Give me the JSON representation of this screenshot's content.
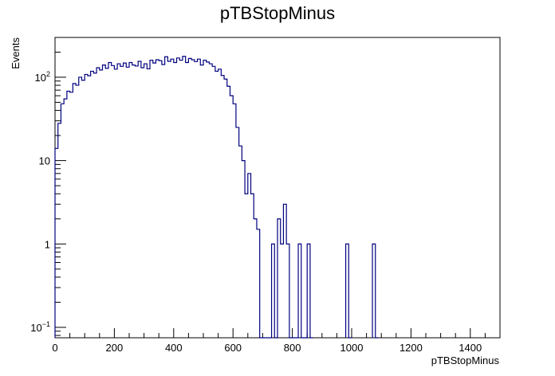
{
  "chart_data": {
    "type": "histogram",
    "title": "pTBStopMinus",
    "xlabel": "pTBStopMinus",
    "ylabel": "Events",
    "xlim": [
      0,
      1500
    ],
    "ylim": [
      0.075,
      300
    ],
    "y_scale": "log",
    "bin_width": 10,
    "line_color": "#000080",
    "x_ticks": [
      0,
      200,
      400,
      600,
      800,
      1000,
      1200,
      1400
    ],
    "y_ticks": [
      {
        "value": 0.1,
        "base": "10",
        "exp": "−1"
      },
      {
        "value": 1,
        "base": "1",
        "exp": ""
      },
      {
        "value": 10,
        "base": "10",
        "exp": ""
      },
      {
        "value": 100,
        "base": "10",
        "exp": "2"
      }
    ],
    "bins": [
      {
        "x": 0,
        "y": 14
      },
      {
        "x": 10,
        "y": 28
      },
      {
        "x": 20,
        "y": 48
      },
      {
        "x": 30,
        "y": 55
      },
      {
        "x": 40,
        "y": 68
      },
      {
        "x": 50,
        "y": 66
      },
      {
        "x": 60,
        "y": 84
      },
      {
        "x": 70,
        "y": 80
      },
      {
        "x": 80,
        "y": 100
      },
      {
        "x": 90,
        "y": 92
      },
      {
        "x": 100,
        "y": 108
      },
      {
        "x": 110,
        "y": 104
      },
      {
        "x": 120,
        "y": 118
      },
      {
        "x": 130,
        "y": 112
      },
      {
        "x": 140,
        "y": 130
      },
      {
        "x": 150,
        "y": 122
      },
      {
        "x": 160,
        "y": 140
      },
      {
        "x": 170,
        "y": 128
      },
      {
        "x": 180,
        "y": 150
      },
      {
        "x": 190,
        "y": 138
      },
      {
        "x": 200,
        "y": 125
      },
      {
        "x": 210,
        "y": 145
      },
      {
        "x": 220,
        "y": 135
      },
      {
        "x": 230,
        "y": 148
      },
      {
        "x": 240,
        "y": 132
      },
      {
        "x": 250,
        "y": 150
      },
      {
        "x": 260,
        "y": 140
      },
      {
        "x": 270,
        "y": 136
      },
      {
        "x": 280,
        "y": 155
      },
      {
        "x": 290,
        "y": 130
      },
      {
        "x": 300,
        "y": 145
      },
      {
        "x": 310,
        "y": 126
      },
      {
        "x": 320,
        "y": 160
      },
      {
        "x": 330,
        "y": 148
      },
      {
        "x": 340,
        "y": 162
      },
      {
        "x": 350,
        "y": 158
      },
      {
        "x": 360,
        "y": 142
      },
      {
        "x": 370,
        "y": 176
      },
      {
        "x": 380,
        "y": 155
      },
      {
        "x": 390,
        "y": 165
      },
      {
        "x": 400,
        "y": 150
      },
      {
        "x": 410,
        "y": 170
      },
      {
        "x": 420,
        "y": 160
      },
      {
        "x": 430,
        "y": 178
      },
      {
        "x": 440,
        "y": 150
      },
      {
        "x": 450,
        "y": 168
      },
      {
        "x": 460,
        "y": 162
      },
      {
        "x": 470,
        "y": 154
      },
      {
        "x": 480,
        "y": 165
      },
      {
        "x": 490,
        "y": 140
      },
      {
        "x": 500,
        "y": 160
      },
      {
        "x": 510,
        "y": 152
      },
      {
        "x": 520,
        "y": 145
      },
      {
        "x": 530,
        "y": 135
      },
      {
        "x": 540,
        "y": 118
      },
      {
        "x": 550,
        "y": 125
      },
      {
        "x": 560,
        "y": 105
      },
      {
        "x": 570,
        "y": 95
      },
      {
        "x": 580,
        "y": 78
      },
      {
        "x": 590,
        "y": 60
      },
      {
        "x": 600,
        "y": 48
      },
      {
        "x": 610,
        "y": 25
      },
      {
        "x": 620,
        "y": 15
      },
      {
        "x": 630,
        "y": 10
      },
      {
        "x": 640,
        "y": 4
      },
      {
        "x": 650,
        "y": 7
      },
      {
        "x": 660,
        "y": 4
      },
      {
        "x": 670,
        "y": 2
      },
      {
        "x": 680,
        "y": 1.5
      },
      {
        "x": 690,
        "y": 0
      },
      {
        "x": 700,
        "y": 0
      },
      {
        "x": 710,
        "y": 0
      },
      {
        "x": 720,
        "y": 0
      },
      {
        "x": 730,
        "y": 1
      },
      {
        "x": 740,
        "y": 0
      },
      {
        "x": 750,
        "y": 2
      },
      {
        "x": 760,
        "y": 1
      },
      {
        "x": 770,
        "y": 3
      },
      {
        "x": 780,
        "y": 1
      },
      {
        "x": 790,
        "y": 0
      },
      {
        "x": 800,
        "y": 0
      },
      {
        "x": 810,
        "y": 0
      },
      {
        "x": 820,
        "y": 1
      },
      {
        "x": 830,
        "y": 0
      },
      {
        "x": 840,
        "y": 0
      },
      {
        "x": 850,
        "y": 1
      },
      {
        "x": 860,
        "y": 0
      },
      {
        "x": 980,
        "y": 1
      },
      {
        "x": 990,
        "y": 0
      },
      {
        "x": 1070,
        "y": 1
      },
      {
        "x": 1080,
        "y": 0
      }
    ]
  }
}
